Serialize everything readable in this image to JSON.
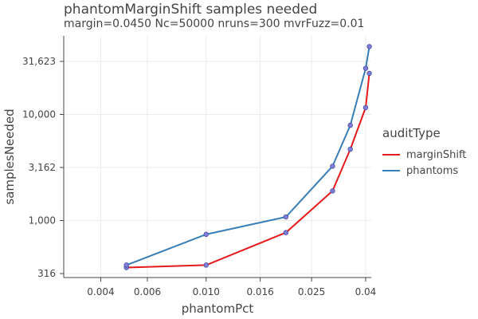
{
  "chart_data": {
    "type": "line",
    "title": "phantomMarginShift samples needed",
    "subtitle": "margin=0.0450 Nc=50000 nruns=300 mvrFuzz=0.01",
    "xlabel": "phantomPct",
    "ylabel": "samplesNeeded",
    "x_scale": "log",
    "y_scale": "log",
    "xlim": [
      0.0029,
      0.042
    ],
    "ylim": [
      290,
      55000
    ],
    "x_ticks": [
      0.004,
      0.006,
      0.01,
      0.016,
      0.025,
      0.04
    ],
    "x_tick_labels": [
      "0.004",
      "0.006",
      "0.010",
      "0.016",
      "0.025",
      "0.04"
    ],
    "y_ticks": [
      316,
      1000,
      3162,
      10000,
      31623
    ],
    "y_tick_labels": [
      "316",
      "1,000",
      "3,162",
      "10,000",
      "31,623"
    ],
    "grid": true,
    "legend_title": "auditType",
    "legend_position": "right",
    "series": [
      {
        "name": "marginShift",
        "color": "#e41a1c",
        "x": [
          0.005,
          0.01,
          0.02,
          0.03,
          0.035,
          0.04,
          0.0413
        ],
        "y": [
          360,
          380,
          770,
          1900,
          4700,
          11600,
          24400
        ]
      },
      {
        "name": "phantoms",
        "color": "#377eb8",
        "x": [
          0.005,
          0.01,
          0.02,
          0.03,
          0.035,
          0.04,
          0.0413
        ],
        "y": [
          380,
          740,
          1080,
          3250,
          7900,
          27200,
          43600
        ]
      }
    ]
  }
}
